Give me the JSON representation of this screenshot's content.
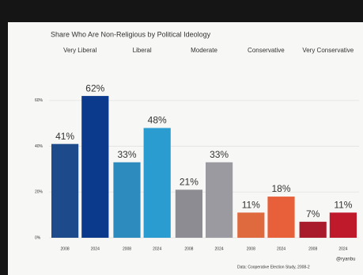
{
  "chart_data": {
    "type": "faceted-bar",
    "title": "Share Who Are Non-Religious by Political Ideology",
    "x_categories": [
      "2008",
      "2024"
    ],
    "panels": [
      {
        "name": "Very Liberal",
        "colors": [
          "#1d4a8a",
          "#0b3a8c"
        ],
        "values": [
          41,
          62
        ],
        "value_labels": [
          "41%",
          "62%"
        ]
      },
      {
        "name": "Liberal",
        "colors": [
          "#2d8bbd",
          "#2a9ccf"
        ],
        "values": [
          33,
          48
        ],
        "value_labels": [
          "33%",
          "48%"
        ]
      },
      {
        "name": "Moderate",
        "colors": [
          "#8c8c92",
          "#9a9aa0"
        ],
        "values": [
          21,
          33
        ],
        "value_labels": [
          "21%",
          "33%"
        ]
      },
      {
        "name": "Conservative",
        "colors": [
          "#df6a3e",
          "#e8603a"
        ],
        "values": [
          11,
          18
        ],
        "value_labels": [
          "11%",
          "18%"
        ]
      },
      {
        "name": "Very Conservative",
        "colors": [
          "#a91b2b",
          "#bf1a2c"
        ],
        "values": [
          7,
          11
        ],
        "value_labels": [
          "7%",
          "11%"
        ]
      }
    ],
    "ylim": [
      0,
      70
    ],
    "yticks": [
      {
        "value": 0,
        "label": "0%"
      },
      {
        "value": 20,
        "label": "20%"
      },
      {
        "value": 40,
        "label": "40%"
      },
      {
        "value": 60,
        "label": "60%"
      }
    ],
    "grid": true,
    "source": "Data: Cooperative Election Study, 2008-2",
    "credit": "@ryanbu"
  }
}
